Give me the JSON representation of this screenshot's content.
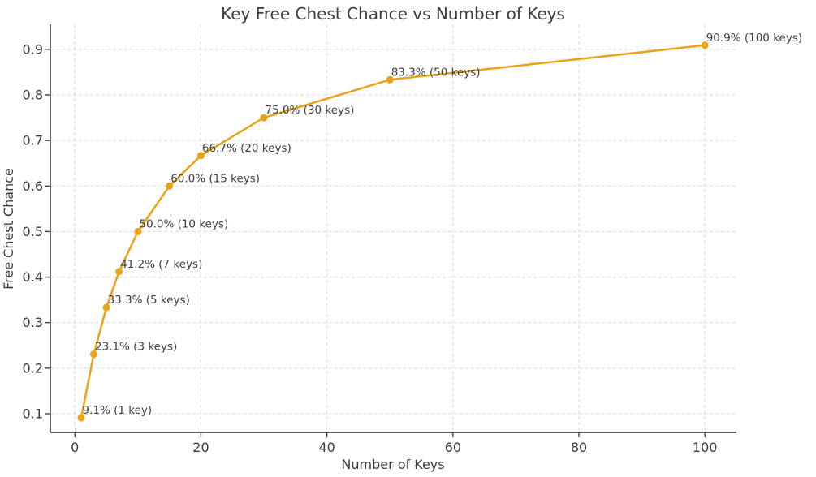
{
  "chart_data": {
    "type": "line",
    "title": "Key Free Chest Chance vs Number of Keys",
    "xlabel": "Number of Keys",
    "ylabel": "Free Chest Chance",
    "x": [
      1,
      3,
      5,
      7,
      10,
      15,
      20,
      30,
      50,
      100
    ],
    "y": [
      0.0909,
      0.2308,
      0.3333,
      0.4118,
      0.5,
      0.6,
      0.6667,
      0.75,
      0.8333,
      0.9091
    ],
    "point_labels": [
      "9.1% (1 key)",
      "23.1% (3 keys)",
      "33.3% (5 keys)",
      "41.2% (7 keys)",
      "50.0% (10 keys)",
      "60.0% (15 keys)",
      "66.7% (20 keys)",
      "75.0% (30 keys)",
      "83.3% (50 keys)",
      "90.9% (100 keys)"
    ],
    "xticks": [
      0,
      20,
      40,
      60,
      80,
      100
    ],
    "yticks": [
      0.1,
      0.2,
      0.3,
      0.4,
      0.5,
      0.6,
      0.7,
      0.8,
      0.9
    ],
    "xlim": [
      -3.9,
      105.0
    ],
    "ylim": [
      0.059,
      0.955
    ],
    "grid": true,
    "legend_position": "none",
    "colors": {
      "line": "#EAA317",
      "marker": "#EAA317",
      "grid": "#D9D9D9",
      "axis": "#333333",
      "text": "#3B3B3B",
      "background": "#FFFFFF"
    }
  }
}
